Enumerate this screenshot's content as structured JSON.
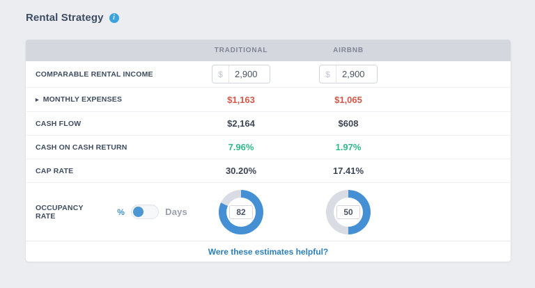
{
  "title": "Rental Strategy",
  "icons": {
    "info": "i",
    "expand_caret": "▸"
  },
  "header": {
    "columns": [
      "TRADITIONAL",
      "AIRBNB"
    ]
  },
  "rows": {
    "rental_income": {
      "label": "COMPARABLE RENTAL INCOME",
      "currency": "$",
      "traditional": "2,900",
      "airbnb": "2,900"
    },
    "monthly_expenses": {
      "label": "MONTHLY EXPENSES",
      "traditional": "$1,163",
      "airbnb": "$1,065"
    },
    "cash_flow": {
      "label": "CASH FLOW",
      "traditional": "$2,164",
      "airbnb": "$608"
    },
    "cash_on_cash": {
      "label": "CASH ON CASH RETURN",
      "traditional": "7.96%",
      "airbnb": "1.97%"
    },
    "cap_rate": {
      "label": "CAP RATE",
      "traditional": "30.20%",
      "airbnb": "17.41%"
    },
    "occupancy": {
      "label": "OCCUPANCY RATE",
      "toggle_left": "%",
      "toggle_right": "Days",
      "toggle_selected": "%",
      "traditional": 82,
      "airbnb": 50
    }
  },
  "footer": {
    "link": "Were these estimates helpful?"
  },
  "colors": {
    "page_bg": "#ecedf1",
    "header_bg": "#d5d7df",
    "negative_red": "#d35847",
    "positive_green": "#2eb98a",
    "link_blue": "#2d7fba",
    "accent_blue": "#4590d4",
    "donut_fill": "#4590d4",
    "donut_track": "#d9dce3",
    "info_icon_blue": "#3ba3df"
  }
}
